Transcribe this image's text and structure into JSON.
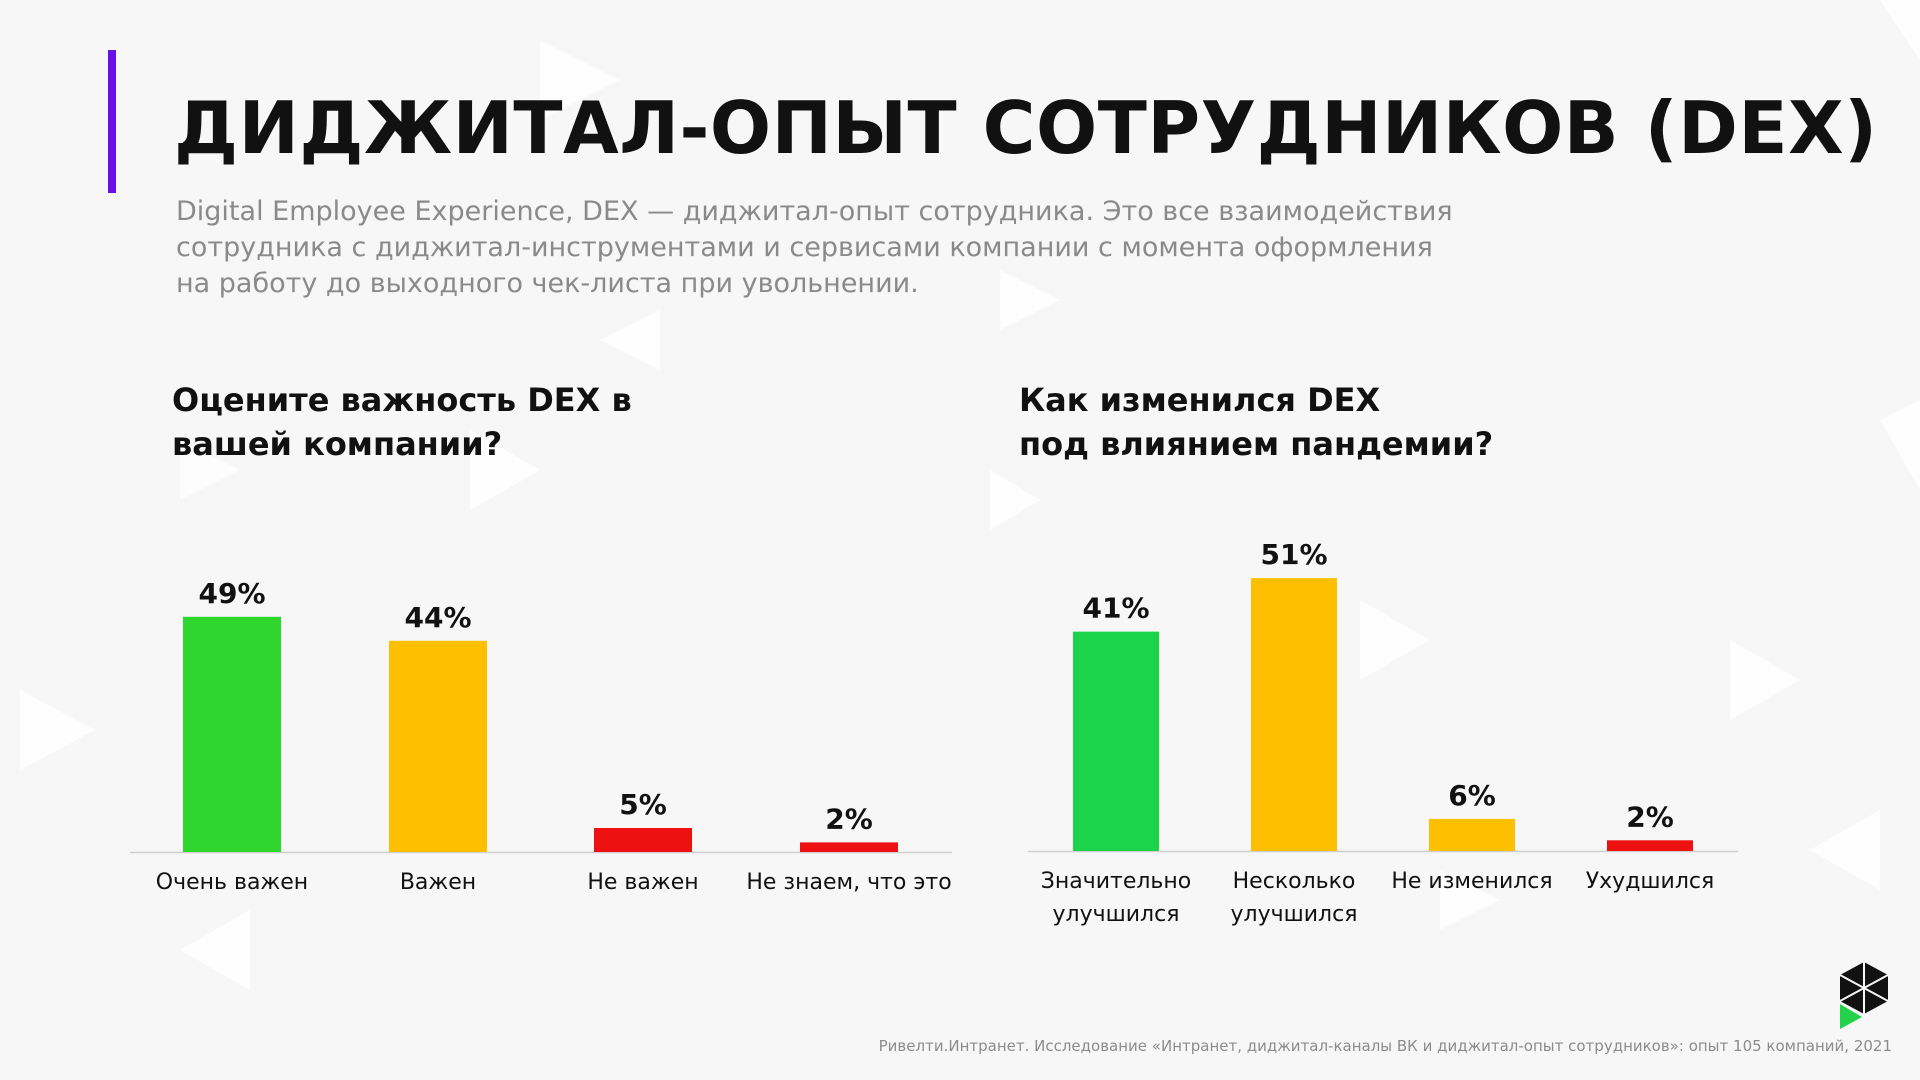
{
  "slide": {
    "title": "ДИДЖИТАЛ-ОПЫТ СОТРУДНИКОВ (DEX)",
    "description_lines": [
      "Digital Employee Experience, DEX — диджитал-опыт сотрудника. Это все взаимодействия",
      "сотрудника с диджитал-инструментами и сервисами компании с момента оформления",
      "на работу до выходного чек-листа при увольнении."
    ],
    "source": "Ривелти.Интранет. Исследование «Интранет, диджитал-каналы ВК и диджитал-опыт сотрудников»: опыт 105 компаний, 2021",
    "accent_color": "#6a10e8",
    "logo_icon": "cube-logo-icon"
  },
  "chart_data": [
    {
      "type": "bar",
      "title_lines": [
        "Оцените важность DEX в",
        "вашей компании?"
      ],
      "categories": [
        [
          "Очень важен"
        ],
        [
          "Важен"
        ],
        [
          "Не важен"
        ],
        [
          "Не знаем, что это"
        ]
      ],
      "values": [
        49,
        44,
        5,
        2
      ],
      "value_labels": [
        "49%",
        "44%",
        "5%",
        "2%"
      ],
      "colors": [
        "#2ed62e",
        "#fdbf00",
        "#ee1111",
        "#ee1111"
      ],
      "xlabel": "",
      "ylabel": "",
      "grid": false,
      "legend": "none"
    },
    {
      "type": "bar",
      "title_lines": [
        "Как изменился DEX",
        "под влиянием пандемии?"
      ],
      "categories": [
        [
          "Значительно",
          "улучшился"
        ],
        [
          "Несколько",
          "улучшился"
        ],
        [
          "Не изменился"
        ],
        [
          "Ухудшился"
        ]
      ],
      "values": [
        41,
        51,
        6,
        2
      ],
      "value_labels": [
        "41%",
        "51%",
        "6%",
        "2%"
      ],
      "colors": [
        "#1bd44a",
        "#fdbf00",
        "#fdbf00",
        "#ee1111"
      ],
      "xlabel": "",
      "ylabel": "",
      "grid": false,
      "legend": "none"
    }
  ]
}
